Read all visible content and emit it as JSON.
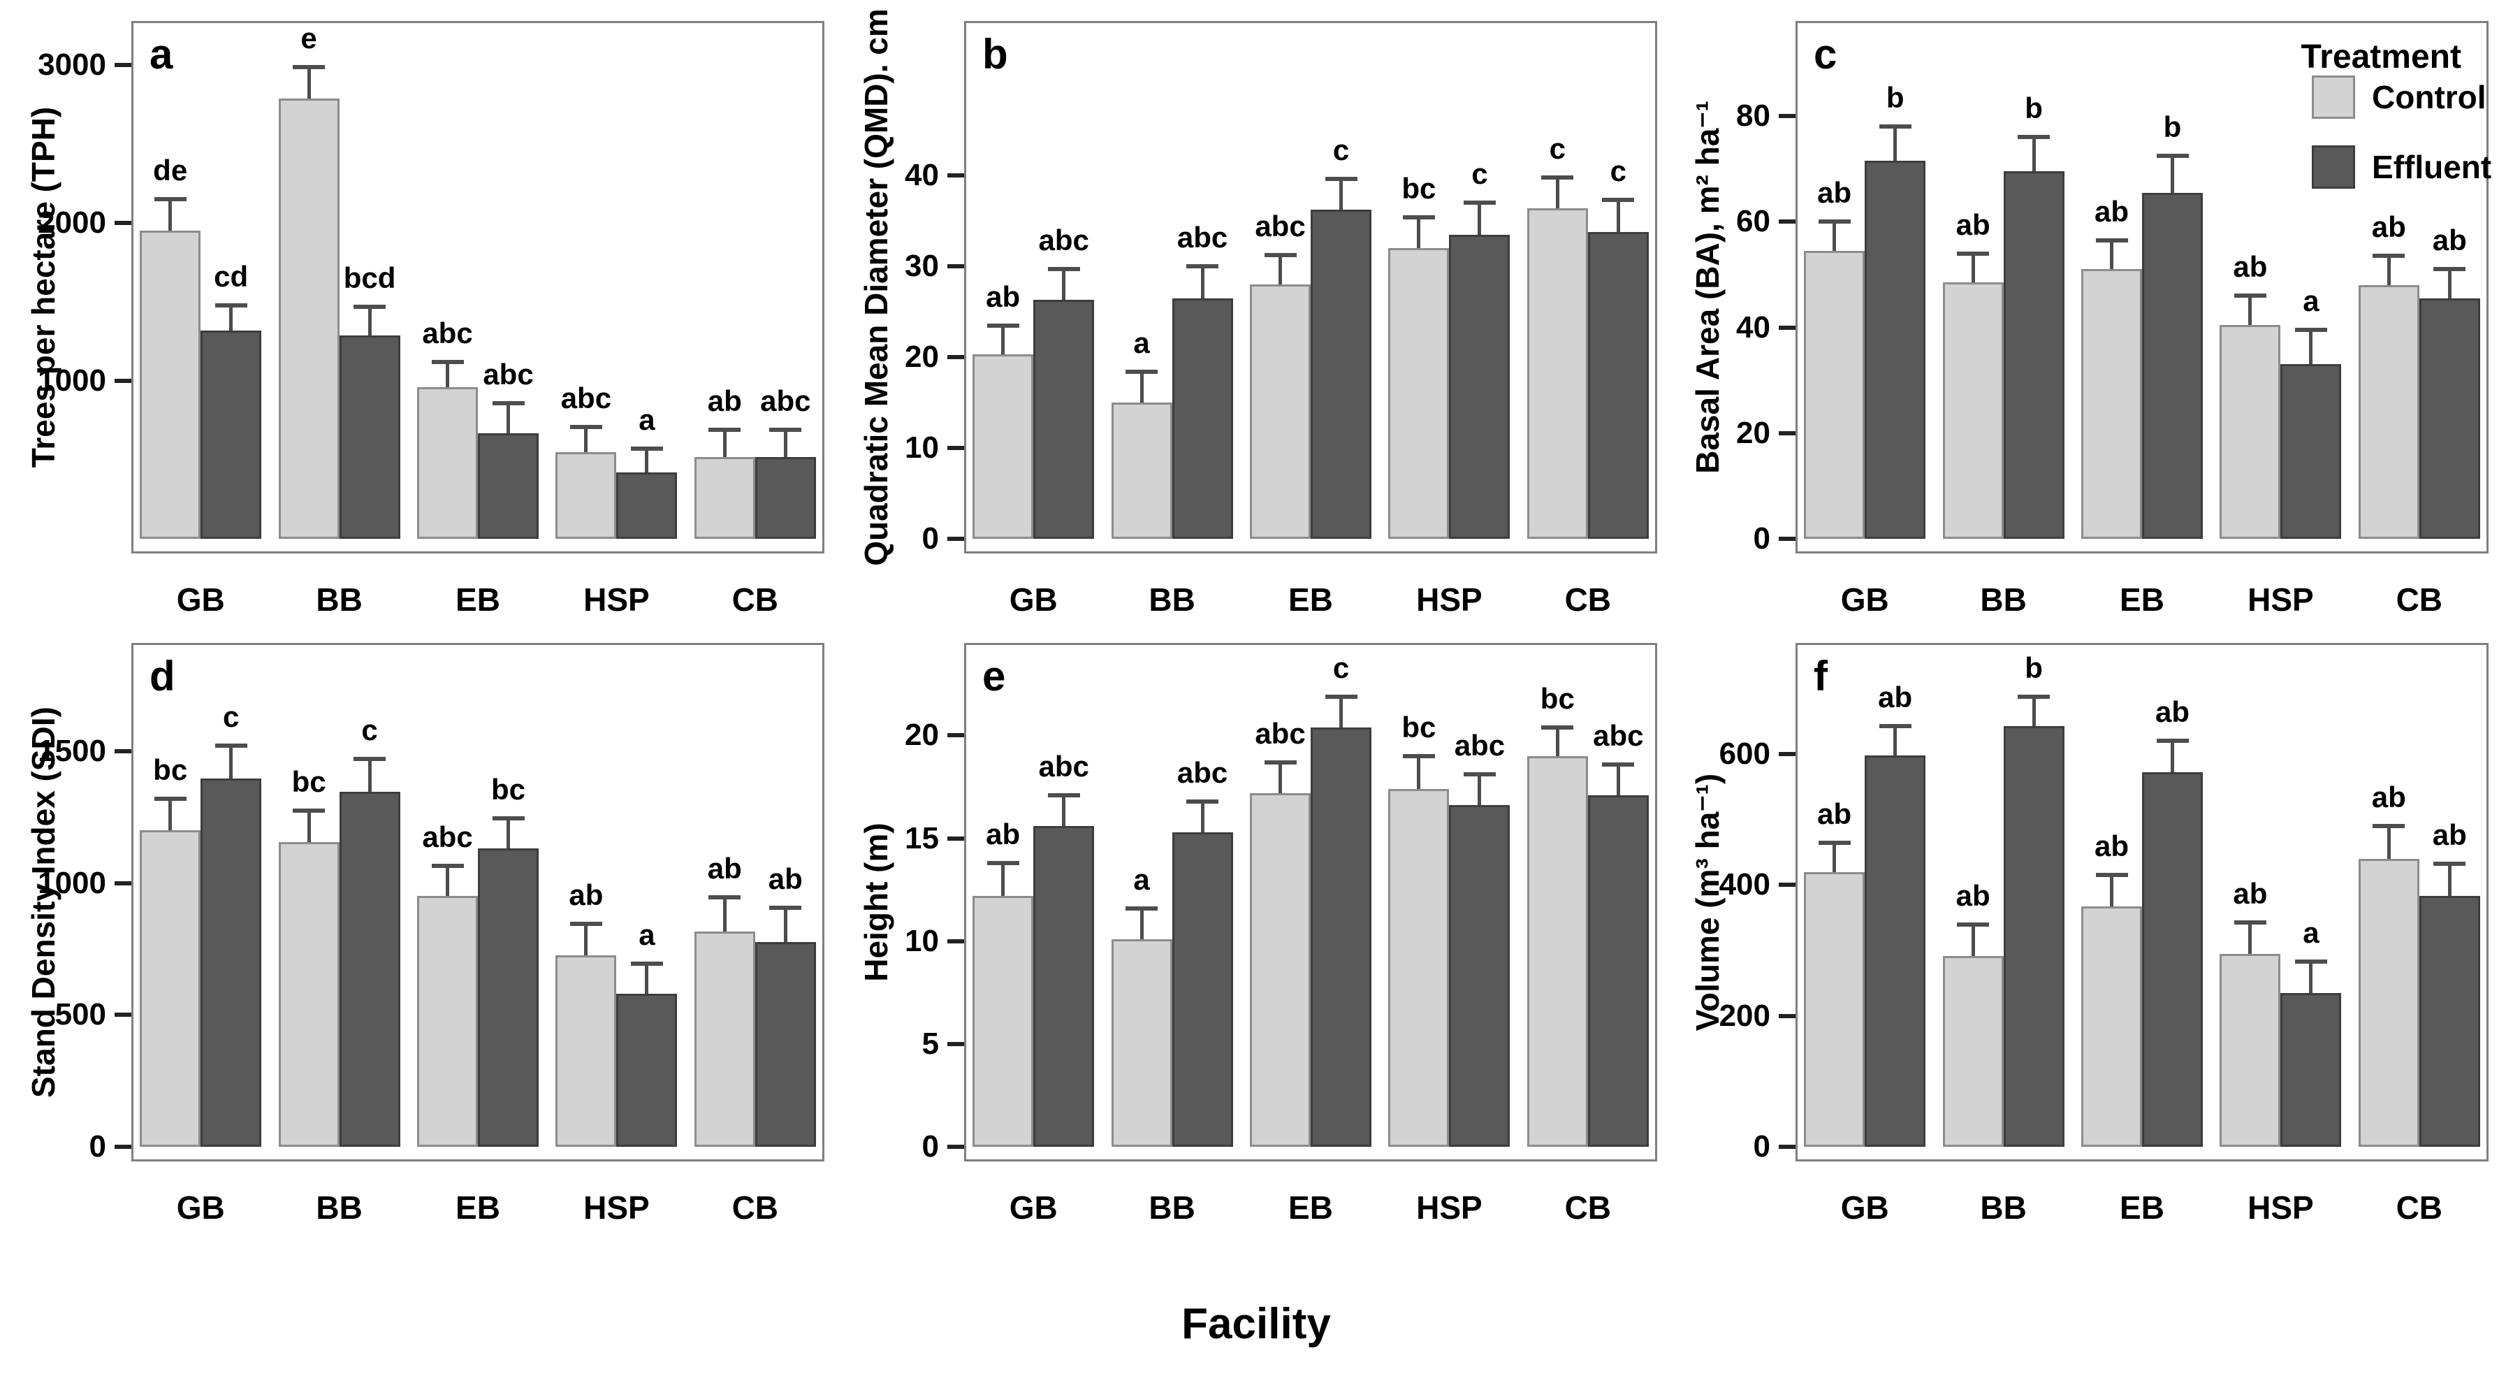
{
  "figure": {
    "x_axis_label": "Facility",
    "categories": [
      "GB",
      "BB",
      "EB",
      "HSP",
      "CB"
    ],
    "legend": {
      "title": "Treatment",
      "entries": [
        {
          "label": "Control",
          "color": "#d3d3d3"
        },
        {
          "label": "Effluent",
          "color": "#595959"
        }
      ]
    },
    "colors": {
      "control_fill": "#d3d3d3",
      "control_border": "#8c8c8c",
      "effluent_fill": "#595959",
      "effluent_border": "#3d3d3d",
      "error_bar": "#4d4d4d",
      "frame": "#7f7f7f",
      "text": "#000000",
      "background": "#ffffff"
    }
  },
  "chart_data": [
    {
      "type": "bar",
      "panel_letter": "a",
      "ylabel": "Trees per hectare (TPH)",
      "categories": [
        "GB",
        "BB",
        "EB",
        "HSP",
        "CB"
      ],
      "yticks": [
        1000,
        2000,
        3000
      ],
      "ylim": [
        0,
        3280
      ],
      "grid": false,
      "series": [
        {
          "name": "Control",
          "values": [
            1950,
            2790,
            960,
            550,
            520
          ],
          "errors_up": [
            200,
            200,
            160,
            160,
            170
          ],
          "sig_letters": [
            "de",
            "e",
            "abc",
            "abc",
            "ab"
          ]
        },
        {
          "name": "Effluent",
          "values": [
            1320,
            1290,
            670,
            420,
            520
          ],
          "errors_up": [
            160,
            180,
            190,
            150,
            170
          ],
          "sig_letters": [
            "cd",
            "bcd",
            "abc",
            "a",
            "abc"
          ]
        }
      ]
    },
    {
      "type": "bar",
      "panel_letter": "b",
      "ylabel": "Quadratic Mean Diameter (QMD). cm",
      "categories": [
        "GB",
        "BB",
        "EB",
        "HSP",
        "CB"
      ],
      "yticks": [
        0,
        10,
        20,
        30,
        40
      ],
      "ylim": [
        0,
        57
      ],
      "grid": false,
      "series": [
        {
          "name": "Control",
          "values": [
            20.3,
            15.0,
            28.0,
            32.0,
            36.4
          ],
          "errors_up": [
            3.2,
            3.4,
            3.2,
            3.4,
            3.4
          ],
          "sig_letters": [
            "ab",
            "a",
            "abc",
            "bc",
            "c"
          ]
        },
        {
          "name": "Effluent",
          "values": [
            26.3,
            26.5,
            36.2,
            33.5,
            33.8
          ],
          "errors_up": [
            3.4,
            3.5,
            3.4,
            3.5,
            3.5
          ],
          "sig_letters": [
            "abc",
            "abc",
            "c",
            "c",
            "c"
          ]
        }
      ]
    },
    {
      "type": "bar",
      "panel_letter": "c",
      "ylabel": "Basal Area (BA), m² ha⁻¹",
      "categories": [
        "GB",
        "BB",
        "EB",
        "HSP",
        "CB"
      ],
      "yticks": [
        0,
        20,
        40,
        60,
        80
      ],
      "ylim": [
        0,
        98
      ],
      "grid": false,
      "has_legend": true,
      "series": [
        {
          "name": "Control",
          "values": [
            54.5,
            48.5,
            51.0,
            40.5,
            48.0
          ],
          "errors_up": [
            5.5,
            5.5,
            5.5,
            5.5,
            5.5
          ],
          "sig_letters": [
            "ab",
            "ab",
            "ab",
            "ab",
            "ab"
          ]
        },
        {
          "name": "Effluent",
          "values": [
            71.5,
            69.5,
            65.5,
            33.0,
            45.5
          ],
          "errors_up": [
            6.5,
            6.5,
            7.0,
            6.5,
            5.5
          ],
          "sig_letters": [
            "b",
            "b",
            "b",
            "a",
            "ab"
          ]
        }
      ]
    },
    {
      "type": "bar",
      "panel_letter": "d",
      "ylabel": "Stand Density Index (SDI)",
      "categories": [
        "GB",
        "BB",
        "EB",
        "HSP",
        "CB"
      ],
      "yticks": [
        0,
        500,
        1000,
        1500
      ],
      "ylim": [
        0,
        1910
      ],
      "grid": false,
      "series": [
        {
          "name": "Control",
          "values": [
            1200,
            1155,
            950,
            725,
            815
          ],
          "errors_up": [
            120,
            120,
            115,
            120,
            130
          ],
          "sig_letters": [
            "bc",
            "bc",
            "abc",
            "ab",
            "ab"
          ]
        },
        {
          "name": "Effluent",
          "values": [
            1395,
            1345,
            1130,
            580,
            775
          ],
          "errors_up": [
            125,
            125,
            115,
            115,
            130
          ],
          "sig_letters": [
            "c",
            "c",
            "bc",
            "a",
            "ab"
          ]
        }
      ]
    },
    {
      "type": "bar",
      "panel_letter": "e",
      "ylabel": "Height (m)",
      "categories": [
        "GB",
        "BB",
        "EB",
        "HSP",
        "CB"
      ],
      "yticks": [
        0,
        5,
        10,
        15,
        20
      ],
      "ylim": [
        0,
        24.5
      ],
      "grid": false,
      "series": [
        {
          "name": "Control",
          "values": [
            12.2,
            10.1,
            17.2,
            17.4,
            19.0
          ],
          "errors_up": [
            1.6,
            1.5,
            1.5,
            1.6,
            1.4
          ],
          "sig_letters": [
            "ab",
            "a",
            "abc",
            "bc",
            "bc"
          ]
        },
        {
          "name": "Effluent",
          "values": [
            15.6,
            15.3,
            20.4,
            16.6,
            17.1
          ],
          "errors_up": [
            1.5,
            1.5,
            1.5,
            1.5,
            1.5
          ],
          "sig_letters": [
            "abc",
            "abc",
            "c",
            "abc",
            "abc"
          ]
        }
      ]
    },
    {
      "type": "bar",
      "panel_letter": "f",
      "ylabel": "Volume (m³ ha⁻¹)",
      "categories": [
        "GB",
        "BB",
        "EB",
        "HSP",
        "CB"
      ],
      "yticks": [
        0,
        200,
        400,
        600
      ],
      "ylim": [
        0,
        770
      ],
      "grid": false,
      "series": [
        {
          "name": "Control",
          "values": [
            420,
            292,
            367,
            295,
            440
          ],
          "errors_up": [
            45,
            48,
            48,
            48,
            50
          ],
          "sig_letters": [
            "ab",
            "ab",
            "ab",
            "ab",
            "ab"
          ]
        },
        {
          "name": "Effluent",
          "values": [
            598,
            643,
            572,
            235,
            383
          ],
          "errors_up": [
            45,
            45,
            48,
            48,
            49
          ],
          "sig_letters": [
            "ab",
            "b",
            "ab",
            "a",
            "ab"
          ]
        }
      ]
    }
  ]
}
